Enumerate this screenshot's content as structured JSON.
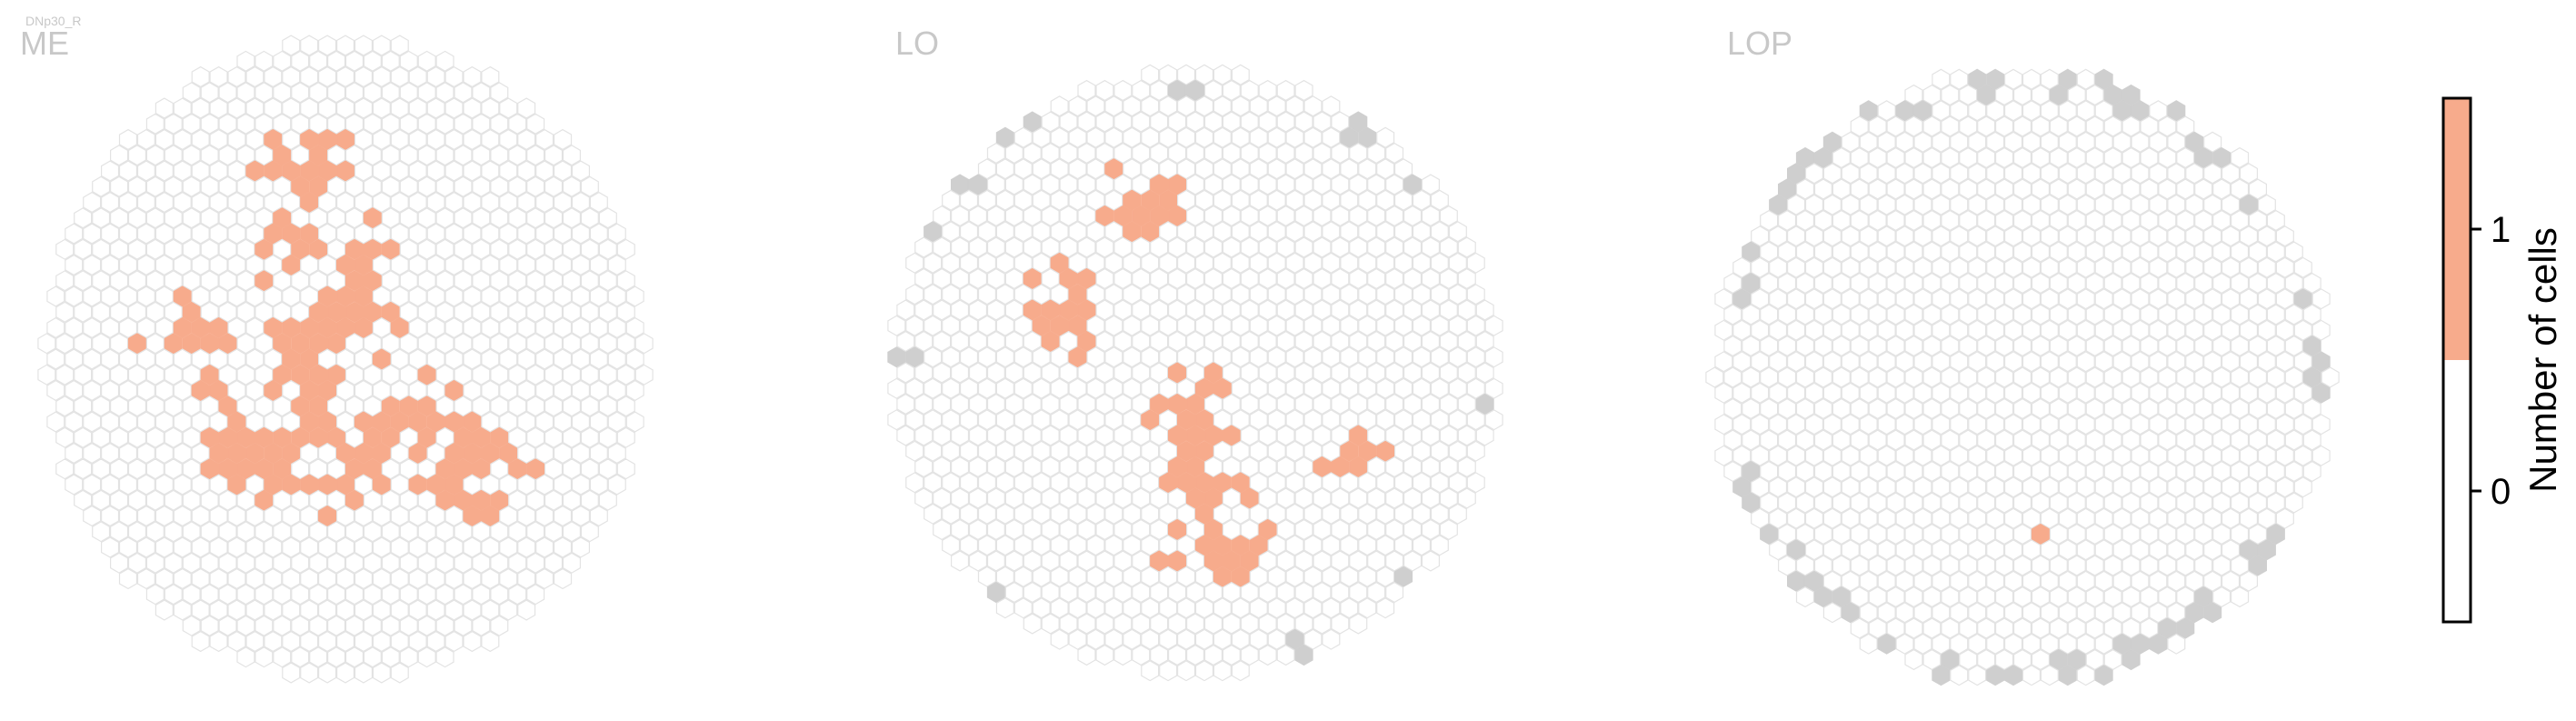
{
  "figure": {
    "header_label": "DNp30_R",
    "colorbar_label": "Number of cells",
    "colorbar_ticks": [
      "1",
      "0"
    ]
  },
  "colors": {
    "empty_fill": "#ffffff",
    "empty_stroke": "#e3e3e3",
    "one_cell": "#f7ab8c",
    "outside": "#cfcfcf",
    "panel_title": "#c8c8c8",
    "header_label": "#c8c8c8",
    "axis": "#000000"
  },
  "chart_data": [
    {
      "type": "heatmap",
      "title": "ME",
      "value_range": [
        0,
        1
      ],
      "legend": "colorbar-right",
      "layout_seed": 11,
      "cells_with_value_1": 150,
      "cells_outside_region": 0
    },
    {
      "type": "heatmap",
      "title": "LO",
      "value_range": [
        0,
        1
      ],
      "legend": "colorbar-right",
      "layout_seed": 23,
      "cells_with_value_1": 76,
      "cells_outside_region": 18
    },
    {
      "type": "heatmap",
      "title": "LOP",
      "value_range": [
        0,
        1
      ],
      "legend": "colorbar-right",
      "layout_seed": 37,
      "cells_with_value_1": 1,
      "cells_outside_region": 64
    }
  ]
}
